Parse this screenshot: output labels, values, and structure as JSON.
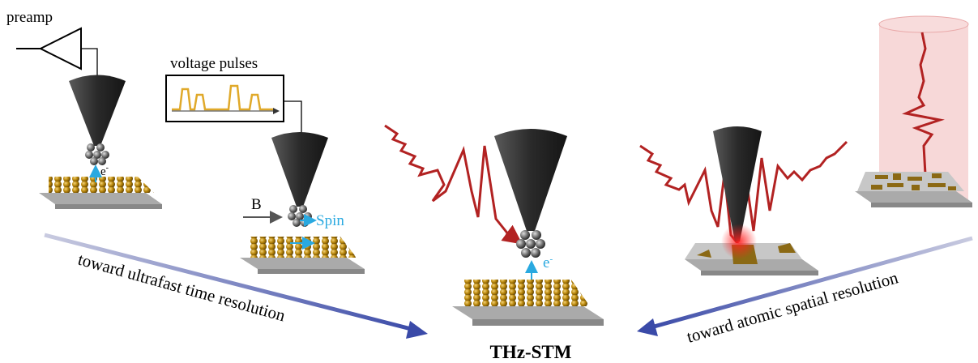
{
  "labels": {
    "preamp": "preamp",
    "voltage_pulses": "voltage pulses",
    "electron_left": {
      "base": "e",
      "sup": "-"
    },
    "field": "B",
    "spin": "Spin",
    "electron_center": {
      "base": "e",
      "sup": "-"
    },
    "left_arrow": "toward ultrafast time resolution",
    "right_arrow": "toward atomic spatial resolution",
    "title": "THz-STM"
  }
}
